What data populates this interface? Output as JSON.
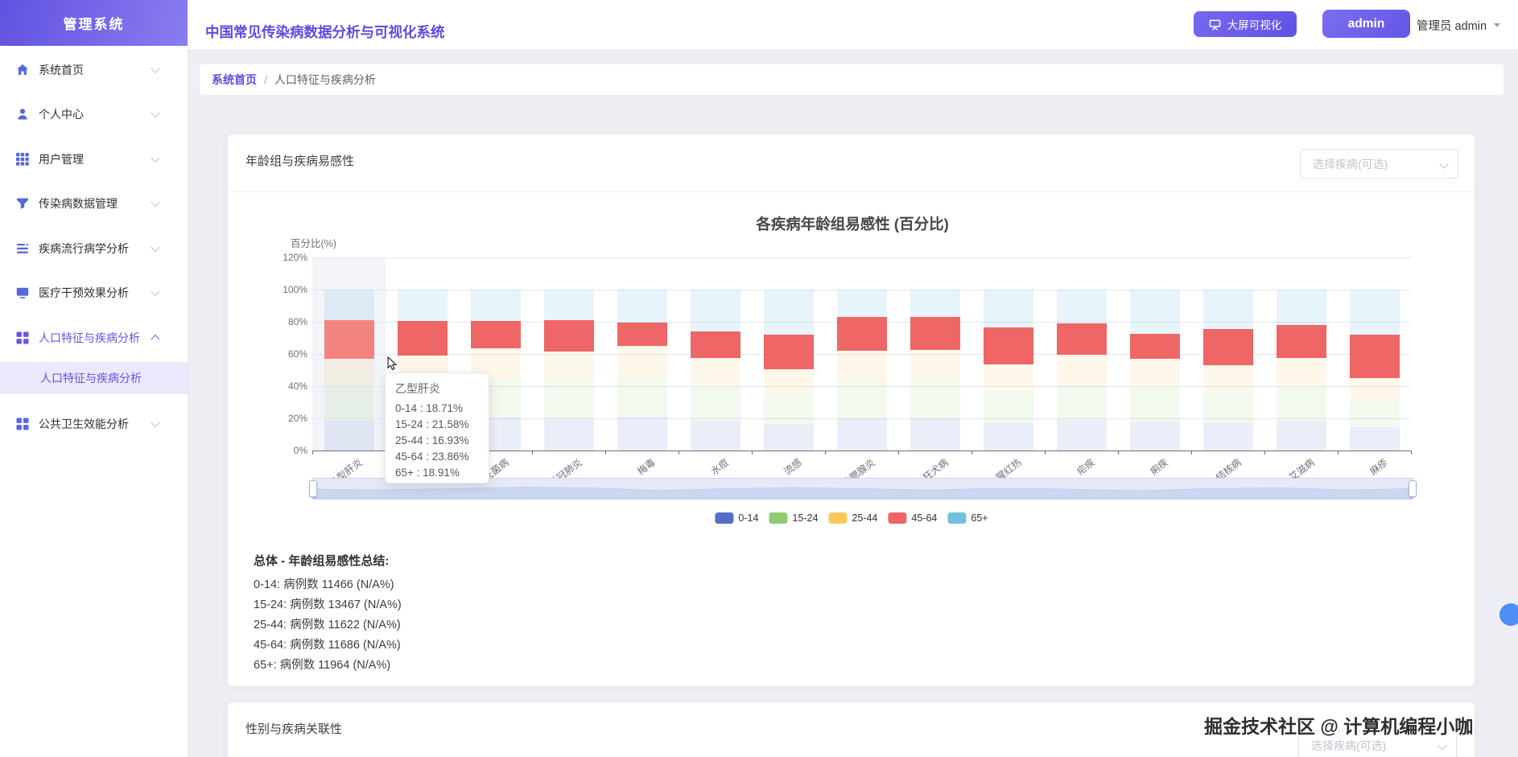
{
  "sidebar": {
    "logo": "管理系统",
    "items": [
      {
        "label": "系统首页",
        "icon": "home"
      },
      {
        "label": "个人中心",
        "icon": "person"
      },
      {
        "label": "用户管理",
        "icon": "grid9"
      },
      {
        "label": "传染病数据管理",
        "icon": "funnel"
      },
      {
        "label": "疾病流行病学分析",
        "icon": "lines"
      },
      {
        "label": "医疗干预效果分析",
        "icon": "monitor"
      },
      {
        "label": "人口特征与疾病分析",
        "icon": "grid4",
        "active": true,
        "expanded": true
      },
      {
        "label": "公共卫生效能分析",
        "icon": "grid4"
      }
    ],
    "submenu": {
      "label": "人口特征与疾病分析",
      "active": true
    }
  },
  "header": {
    "title": "中国常见传染病数据分析与可视化系统",
    "screen_button": "大屏可视化",
    "admin_button": "admin",
    "user_label": "管理员 admin"
  },
  "breadcrumb": {
    "home": "系统首页",
    "separator": "/",
    "current": "人口特征与疾病分析"
  },
  "card1": {
    "title": "年龄组与疾病易感性",
    "select_placeholder": "选择疾病(可选)"
  },
  "card2": {
    "title": "性别与疾病关联性",
    "select_placeholder": "选择疾病(可选)"
  },
  "chart_data": {
    "type": "bar",
    "stacked": true,
    "title": "各疾病年龄组易感性 (百分比)",
    "ylabel": "百分比(%)",
    "ylim": [
      0,
      120
    ],
    "yticks": [
      "0%",
      "20%",
      "40%",
      "60%",
      "80%",
      "100%",
      "120%"
    ],
    "grid": true,
    "legend_position": "bottom",
    "categories": [
      "乙型肝炎",
      "丙型肝炎",
      "布鲁氏菌病",
      "新冠肺炎",
      "梅毒",
      "水痘",
      "流感",
      "流行性腮腺炎",
      "狂犬病",
      "猩红热",
      "疟疾",
      "痢疾",
      "结核病",
      "艾滋病",
      "麻疹"
    ],
    "series": [
      {
        "name": "0-14",
        "color": "#5470c6",
        "dim_opacity": 0.12,
        "values": [
          18.71,
          18.9,
          20.3,
          19.7,
          20.8,
          18.4,
          16.2,
          19.8,
          20.0,
          17.1,
          19.0,
          18.2,
          17.0,
          18.4,
          14.4
        ]
      },
      {
        "name": "15-24",
        "color": "#91cc75",
        "dim_opacity": 0.12,
        "values": [
          21.58,
          21.8,
          23.5,
          22.8,
          24.0,
          21.3,
          18.7,
          23.0,
          23.1,
          19.8,
          22.0,
          21.1,
          19.6,
          21.3,
          16.7
        ]
      },
      {
        "name": "25-44",
        "color": "#fac858",
        "dim_opacity": 0.12,
        "values": [
          16.93,
          18.3,
          19.7,
          19.0,
          20.2,
          17.8,
          15.6,
          19.2,
          19.4,
          16.6,
          18.5,
          17.7,
          16.4,
          17.8,
          13.9
        ]
      },
      {
        "name": "45-64",
        "color": "#ee6666",
        "dim_opacity": 1,
        "values": [
          23.86,
          21.5,
          17.0,
          19.5,
          14.5,
          16.5,
          21.5,
          21.0,
          20.5,
          23.0,
          19.5,
          15.5,
          22.5,
          20.5,
          27.0
        ]
      },
      {
        "name": "65+",
        "color": "#73c0de",
        "dim_opacity": 0.17,
        "values": [
          18.91,
          19.5,
          19.5,
          19.0,
          20.5,
          26.0,
          28.0,
          17.0,
          17.0,
          23.5,
          21.0,
          27.5,
          24.5,
          22.0,
          28.0
        ]
      }
    ],
    "highlight_index": 0,
    "highlight_color": "#f2837f",
    "tooltip": {
      "title": "乙型肝炎",
      "lines": [
        "0-14 : 18.71%",
        "15-24 : 21.58%",
        "25-44 : 16.93%",
        "45-64 : 23.86%",
        "65+ : 18.91%"
      ]
    },
    "datazoom_wave": [
      0.52,
      0.55,
      0.5,
      0.42,
      0.45,
      0.58,
      0.5,
      0.44,
      0.5,
      0.56,
      0.48,
      0.52,
      0.6,
      0.5,
      0.45,
      0.55,
      0.5
    ]
  },
  "summary": {
    "title": "总体 - 年龄组易感性总结:",
    "lines": [
      "0-14: 病例数 11466 (N/A%)",
      "15-24: 病例数 13467 (N/A%)",
      "25-44: 病例数 11622 (N/A%)",
      "45-64: 病例数 11686 (N/A%)",
      "65+: 病例数 11964 (N/A%)"
    ]
  },
  "watermark": "掘金技术社区 @ 计算机编程小咖"
}
